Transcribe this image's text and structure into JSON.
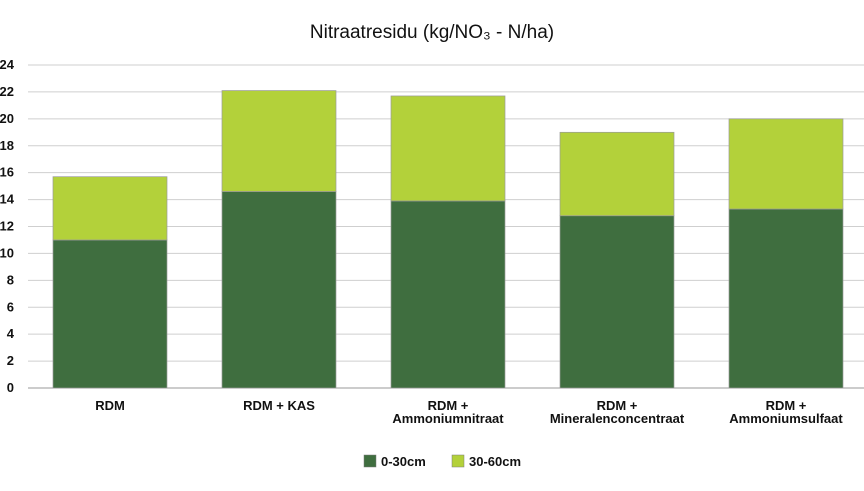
{
  "chart_data": {
    "type": "bar",
    "stacked": true,
    "title": "Nitraatresidu (kg/NO₃ - N/ha)",
    "xlabel": "",
    "ylabel": "",
    "ylim": [
      0,
      24
    ],
    "y_ticks": [
      "0",
      "2",
      "4",
      "6",
      "8",
      "10",
      "12",
      "14",
      "16",
      "18",
      "20",
      "22",
      "24"
    ],
    "categories": [
      [
        "RDM"
      ],
      [
        "RDM + KAS"
      ],
      [
        "RDM +",
        "Ammoniumnitraat"
      ],
      [
        "RDM +",
        "Mineralenconcentraat"
      ],
      [
        "RDM +",
        "Ammoniumsulfaat"
      ]
    ],
    "series": [
      {
        "name": "0-30cm",
        "color": "#3f6e3f",
        "values": [
          11.0,
          14.6,
          13.9,
          12.8,
          13.3
        ]
      },
      {
        "name": "30-60cm",
        "color": "#b3d13a",
        "values": [
          4.7,
          7.5,
          7.8,
          6.2,
          6.7
        ]
      }
    ],
    "grid": true,
    "legend_position": "bottom-center"
  }
}
